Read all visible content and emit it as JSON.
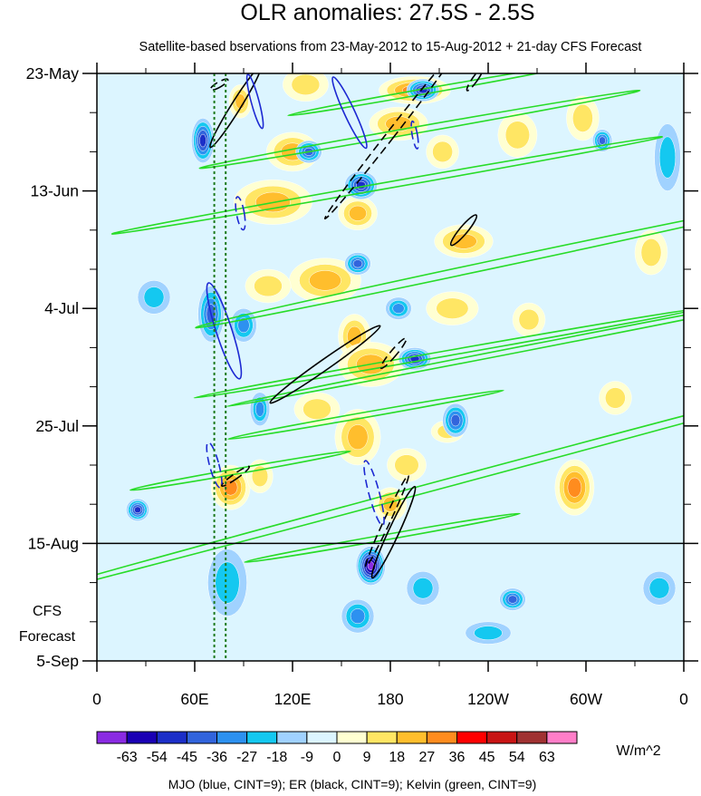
{
  "chart_data": {
    "type": "heatmap",
    "title": "OLR anomalies: 27.5S - 2.5S",
    "subtitle": "Satellite-based bservations from 23-May-2012 to 15-Aug-2012 + 21-day CFS Forecast",
    "x_ticks": [
      {
        "label": "0",
        "lon": 0
      },
      {
        "label": "60E",
        "lon": 60
      },
      {
        "label": "120E",
        "lon": 120
      },
      {
        "label": "180",
        "lon": 180
      },
      {
        "label": "120W",
        "lon": 240
      },
      {
        "label": "60W",
        "lon": 300
      },
      {
        "label": "0",
        "lon": 360
      }
    ],
    "y_ticks": [
      {
        "label": "23-May",
        "day": 0
      },
      {
        "label": "13-Jun",
        "day": 21
      },
      {
        "label": "4-Jul",
        "day": 42
      },
      {
        "label": "25-Jul",
        "day": 63
      },
      {
        "label": "15-Aug",
        "day": 84
      },
      {
        "label": "5-Sep",
        "day": 105
      }
    ],
    "forecast_start_day": 84,
    "forecast_label": [
      "CFS",
      "Forecast"
    ],
    "colorbar": {
      "labels": [
        "-63",
        "-54",
        "-45",
        "-36",
        "-27",
        "-18",
        "-9",
        "0",
        "9",
        "18",
        "27",
        "36",
        "45",
        "54",
        "63"
      ],
      "colors": [
        "#8a2be2",
        "#1a00b4",
        "#1c2fc8",
        "#3264dc",
        "#2d91f0",
        "#14c8f0",
        "#a0d2ff",
        "#dcf5ff",
        "#ffffd2",
        "#ffe664",
        "#ffbe2d",
        "#ff8c1e",
        "#ff0000",
        "#c81414",
        "#a03232",
        "#ff7ec8"
      ],
      "units": "W/m^2"
    },
    "footnote": "MJO (blue, CINT=9); ER (black, CINT=9); Kelvin (green, CINT=9)",
    "colors": {
      "mjo": "#1c28d2",
      "er": "#000000",
      "kelvin": "#28dc28",
      "guide": "#1e7a1e"
    },
    "guide_lons": [
      72,
      79
    ],
    "blobs": [
      {
        "lon": 195,
        "day": 3,
        "rx": 22,
        "ry": 2.5,
        "v": 30
      },
      {
        "lon": 185,
        "day": 9,
        "rx": 18,
        "ry": 3,
        "v": 22
      },
      {
        "lon": 128,
        "day": 2,
        "rx": 14,
        "ry": 3,
        "v": 18
      },
      {
        "lon": 120,
        "day": 14,
        "rx": 16,
        "ry": 3.5,
        "v": 25
      },
      {
        "lon": 108,
        "day": 23,
        "rx": 24,
        "ry": 4,
        "v": 24
      },
      {
        "lon": 212,
        "day": 14,
        "rx": 10,
        "ry": 3,
        "v": 18
      },
      {
        "lon": 88,
        "day": 5,
        "rx": 7,
        "ry": 3,
        "v": 20
      },
      {
        "lon": 160,
        "day": 25,
        "rx": 12,
        "ry": 3,
        "v": 20
      },
      {
        "lon": 225,
        "day": 30,
        "rx": 18,
        "ry": 3,
        "v": 20
      },
      {
        "lon": 258,
        "day": 11,
        "rx": 12,
        "ry": 4,
        "v": 18
      },
      {
        "lon": 140,
        "day": 37,
        "rx": 22,
        "ry": 4,
        "v": 24
      },
      {
        "lon": 105,
        "day": 38,
        "rx": 14,
        "ry": 3,
        "v": 18
      },
      {
        "lon": 218,
        "day": 42,
        "rx": 16,
        "ry": 3,
        "v": 18
      },
      {
        "lon": 158,
        "day": 47,
        "rx": 10,
        "ry": 4,
        "v": 26
      },
      {
        "lon": 168,
        "day": 52,
        "rx": 20,
        "ry": 4,
        "v": 24
      },
      {
        "lon": 160,
        "day": 65,
        "rx": 14,
        "ry": 5,
        "v": 22
      },
      {
        "lon": 190,
        "day": 70,
        "rx": 12,
        "ry": 3,
        "v": 18
      },
      {
        "lon": 82,
        "day": 74,
        "rx": 12,
        "ry": 4,
        "v": 30
      },
      {
        "lon": 180,
        "day": 77,
        "rx": 10,
        "ry": 3,
        "v": 22
      },
      {
        "lon": 293,
        "day": 74,
        "rx": 12,
        "ry": 5,
        "v": 30
      },
      {
        "lon": 318,
        "day": 58,
        "rx": 10,
        "ry": 3,
        "v": 18
      },
      {
        "lon": 265,
        "day": 44,
        "rx": 10,
        "ry": 3,
        "v": 18
      },
      {
        "lon": 135,
        "day": 60,
        "rx": 14,
        "ry": 3,
        "v": 16
      },
      {
        "lon": 100,
        "day": 72,
        "rx": 8,
        "ry": 3,
        "v": 18
      },
      {
        "lon": 298,
        "day": 8,
        "rx": 10,
        "ry": 4,
        "v": 18
      },
      {
        "lon": 340,
        "day": 32,
        "rx": 10,
        "ry": 4,
        "v": 14
      },
      {
        "lon": 215,
        "day": 64,
        "rx": 10,
        "ry": 2,
        "v": 14
      },
      {
        "lon": 65,
        "day": 12,
        "rx": 7,
        "ry": 4,
        "v": -40
      },
      {
        "lon": 200,
        "day": 3,
        "rx": 10,
        "ry": 2,
        "v": -45
      },
      {
        "lon": 162,
        "day": 20,
        "rx": 10,
        "ry": 2.5,
        "v": -40
      },
      {
        "lon": 168,
        "day": 88,
        "rx": 9,
        "ry": 3.5,
        "v": -60
      },
      {
        "lon": 130,
        "day": 14,
        "rx": 8,
        "ry": 2,
        "v": -30
      },
      {
        "lon": 160,
        "day": 34,
        "rx": 8,
        "ry": 2,
        "v": -35
      },
      {
        "lon": 195,
        "day": 51,
        "rx": 10,
        "ry": 2,
        "v": -40
      },
      {
        "lon": 220,
        "day": 62,
        "rx": 8,
        "ry": 3,
        "v": -30
      },
      {
        "lon": 25,
        "day": 78,
        "rx": 7,
        "ry": 2,
        "v": -40
      },
      {
        "lon": 255,
        "day": 94,
        "rx": 8,
        "ry": 2,
        "v": -32
      },
      {
        "lon": 70,
        "day": 43,
        "rx": 8,
        "ry": 5,
        "v": -28
      },
      {
        "lon": 90,
        "day": 45,
        "rx": 8,
        "ry": 3,
        "v": -22
      },
      {
        "lon": 310,
        "day": 12,
        "rx": 6,
        "ry": 2,
        "v": -35
      },
      {
        "lon": 185,
        "day": 42,
        "rx": 8,
        "ry": 2,
        "v": -25
      },
      {
        "lon": 160,
        "day": 97,
        "rx": 10,
        "ry": 3,
        "v": -20
      },
      {
        "lon": 240,
        "day": 100,
        "rx": 14,
        "ry": 2,
        "v": -16
      },
      {
        "lon": 80,
        "day": 91,
        "rx": 12,
        "ry": 6,
        "v": -16
      },
      {
        "lon": 200,
        "day": 92,
        "rx": 10,
        "ry": 3,
        "v": -14
      },
      {
        "lon": 345,
        "day": 92,
        "rx": 10,
        "ry": 3,
        "v": -16
      },
      {
        "lon": 35,
        "day": 40,
        "rx": 10,
        "ry": 3,
        "v": -12
      },
      {
        "lon": 350,
        "day": 15,
        "rx": 8,
        "ry": 6,
        "v": -10
      },
      {
        "lon": 100,
        "day": 60,
        "rx": 6,
        "ry": 3,
        "v": -20
      }
    ],
    "mjo": [
      {
        "lon": 97,
        "day": 5,
        "rx": 1.5,
        "ry": 5,
        "rot": -15,
        "dash": false
      },
      {
        "lon": 155,
        "day": 7,
        "rx": 2,
        "ry": 7,
        "rot": -25,
        "dash": false
      },
      {
        "lon": 78,
        "day": 46,
        "rx": 3,
        "ry": 9,
        "rot": -18,
        "dash": false
      },
      {
        "lon": 88,
        "day": 25,
        "rx": 1.5,
        "ry": 3,
        "rot": -10,
        "dash": true
      },
      {
        "lon": 195,
        "day": 11,
        "rx": 1,
        "ry": 2.5,
        "rot": -10,
        "dash": true
      },
      {
        "lon": 72,
        "day": 70,
        "rx": 1.8,
        "ry": 4.2,
        "rot": -15,
        "dash": true
      },
      {
        "lon": 170,
        "day": 75,
        "rx": 2,
        "ry": 6,
        "rot": -15,
        "dash": true
      }
    ],
    "er": [
      {
        "lon": 85,
        "day": 6,
        "rx": 1.8,
        "ry": 8.5,
        "rot": 32,
        "dash": false
      },
      {
        "lon": 180,
        "day": 11,
        "rx": 1.5,
        "ry": 19,
        "rot": 38,
        "dash": true
      },
      {
        "lon": 225,
        "day": 28,
        "rx": 1.5,
        "ry": 3.5,
        "rot": 40,
        "dash": false
      },
      {
        "lon": 140,
        "day": 52,
        "rx": 2,
        "ry": 12,
        "rot": 55,
        "dash": false
      },
      {
        "lon": 182,
        "day": 50,
        "rx": 1.2,
        "ry": 3.5,
        "rot": 40,
        "dash": true
      },
      {
        "lon": 85,
        "day": 72,
        "rx": 1,
        "ry": 3,
        "rot": 55,
        "dash": true
      },
      {
        "lon": 178,
        "day": 80,
        "rx": 1.2,
        "ry": 9,
        "rot": 25,
        "dash": true
      },
      {
        "lon": 182,
        "day": 82,
        "rx": 2,
        "ry": 9,
        "rot": 25,
        "dash": false
      },
      {
        "lon": 75,
        "day": 2,
        "rx": 1,
        "ry": 1.8,
        "rot": 60,
        "dash": true
      },
      {
        "lon": 232,
        "day": 1,
        "rx": 1,
        "ry": 2.5,
        "rot": 35,
        "dash": true
      }
    ],
    "kelvin": [
      {
        "lon": 205,
        "day": 3,
        "rx": 1,
        "ry": 26,
        "rot": 80
      },
      {
        "lon": 198,
        "day": 10,
        "rx": 1.2,
        "ry": 40,
        "rot": 80
      },
      {
        "lon": 178,
        "day": 20,
        "rx": 1.2,
        "ry": 50,
        "rot": 80
      },
      {
        "lon": 245,
        "day": 34,
        "rx": 1.5,
        "ry": 55,
        "rot": 78
      },
      {
        "lon": 215,
        "day": 50,
        "rx": 1,
        "ry": 46,
        "rot": 80
      },
      {
        "lon": 265,
        "day": 49,
        "rx": 1,
        "ry": 55,
        "rot": 79
      },
      {
        "lon": 230,
        "day": 72,
        "rx": 1.5,
        "ry": 88,
        "rot": 75
      },
      {
        "lon": 175,
        "day": 83,
        "rx": 1,
        "ry": 25,
        "rot": 80
      },
      {
        "lon": 165,
        "day": 61,
        "rx": 1,
        "ry": 25,
        "rot": 80
      },
      {
        "lon": 88,
        "day": 71,
        "rx": 1,
        "ry": 20,
        "rot": 80
      }
    ]
  }
}
